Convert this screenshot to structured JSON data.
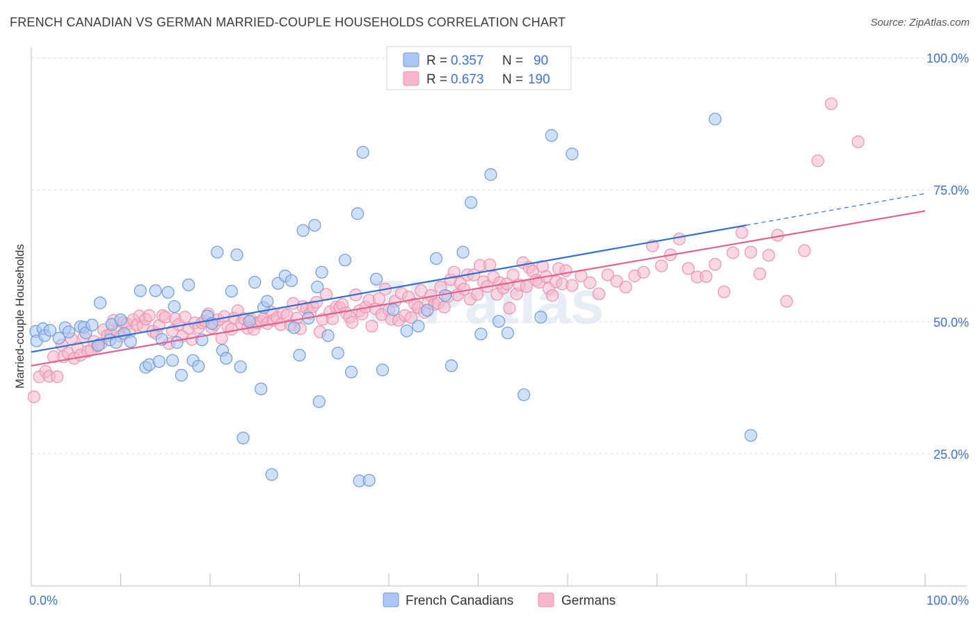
{
  "title": "FRENCH CANADIAN VS GERMAN MARRIED-COUPLE HOUSEHOLDS CORRELATION CHART",
  "source": "Source: ZipAtlas.com",
  "watermark": "ZIPatlas",
  "colors": {
    "blue_fill": "#a9c7f2",
    "blue_stroke": "#6f9bd8",
    "blue_line": "#2e6fd1",
    "pink_fill": "#f6b6cb",
    "pink_stroke": "#e894b0",
    "pink_line": "#e0608e",
    "tick_label": "#3f72c4",
    "grid": "#d9d9d9",
    "axis": "#bdbdbd"
  },
  "legend_top": [
    {
      "r_label": "R =",
      "r_value": "0.357",
      "n_label": "N =",
      "n_value": "90"
    },
    {
      "r_label": "R =",
      "r_value": "0.673",
      "n_label": "N =",
      "n_value": "190"
    }
  ],
  "legend_bottom": [
    "French Canadians",
    "Germans"
  ],
  "chart_data": {
    "type": "scatter",
    "ylabel": "Married-couple Households",
    "xlabel": "",
    "xlim": [
      0,
      100
    ],
    "ylim": [
      0,
      102
    ],
    "x_tick_labels": [
      "0.0%",
      "100.0%"
    ],
    "y_ticks": [
      25,
      50,
      75,
      100
    ],
    "y_tick_labels": [
      "25.0%",
      "50.0%",
      "75.0%",
      "100.0%"
    ],
    "grid": true,
    "legend_placement": "top-center and bottom-center",
    "series": [
      {
        "name": "French Canadians",
        "r": 0.357,
        "n": 90,
        "trend": {
          "x0": 0,
          "y0": 44.3,
          "x1": 80,
          "y1": 68.3,
          "dash_to_x": 100,
          "dash_to_y": 74.3
        },
        "points": [
          [
            0.5,
            48.2
          ],
          [
            0.6,
            46.4
          ],
          [
            1.3,
            48.7
          ],
          [
            1.5,
            47.4
          ],
          [
            2.1,
            48.4
          ],
          [
            3.1,
            46.9
          ],
          [
            3.8,
            48.9
          ],
          [
            4.2,
            48.1
          ],
          [
            5.5,
            49.1
          ],
          [
            5.9,
            49.0
          ],
          [
            6.1,
            47.9
          ],
          [
            6.8,
            49.4
          ],
          [
            7.5,
            45.6
          ],
          [
            7.7,
            53.6
          ],
          [
            8.8,
            46.6
          ],
          [
            9.0,
            49.5
          ],
          [
            9.5,
            46.1
          ],
          [
            10.0,
            50.4
          ],
          [
            10.4,
            47.8
          ],
          [
            11.1,
            46.3
          ],
          [
            12.2,
            55.9
          ],
          [
            12.8,
            41.4
          ],
          [
            13.2,
            41.9
          ],
          [
            13.9,
            55.9
          ],
          [
            14.3,
            42.5
          ],
          [
            14.6,
            46.7
          ],
          [
            15.3,
            55.6
          ],
          [
            15.8,
            42.7
          ],
          [
            16.0,
            52.9
          ],
          [
            16.3,
            46.1
          ],
          [
            16.8,
            39.9
          ],
          [
            17.6,
            57.0
          ],
          [
            18.1,
            42.7
          ],
          [
            18.7,
            41.6
          ],
          [
            19.1,
            46.6
          ],
          [
            19.7,
            51.1
          ],
          [
            20.2,
            49.7
          ],
          [
            20.8,
            63.2
          ],
          [
            21.4,
            44.6
          ],
          [
            21.8,
            43.1
          ],
          [
            22.4,
            55.8
          ],
          [
            23.0,
            62.7
          ],
          [
            23.4,
            41.5
          ],
          [
            23.7,
            28.0
          ],
          [
            24.4,
            50.1
          ],
          [
            25.0,
            57.5
          ],
          [
            25.7,
            37.3
          ],
          [
            26.0,
            52.7
          ],
          [
            26.4,
            53.9
          ],
          [
            26.9,
            21.1
          ],
          [
            27.6,
            57.3
          ],
          [
            28.4,
            58.7
          ],
          [
            29.1,
            57.8
          ],
          [
            29.4,
            48.9
          ],
          [
            30.0,
            43.7
          ],
          [
            30.4,
            67.3
          ],
          [
            31.0,
            50.7
          ],
          [
            31.7,
            68.3
          ],
          [
            32.0,
            56.6
          ],
          [
            32.5,
            59.4
          ],
          [
            32.2,
            34.9
          ],
          [
            33.2,
            47.4
          ],
          [
            34.3,
            44.1
          ],
          [
            35.1,
            61.7
          ],
          [
            35.8,
            40.5
          ],
          [
            36.5,
            70.5
          ],
          [
            36.7,
            19.9
          ],
          [
            37.1,
            82.1
          ],
          [
            37.8,
            20.0
          ],
          [
            38.6,
            58.1
          ],
          [
            39.3,
            40.9
          ],
          [
            40.5,
            52.3
          ],
          [
            42.0,
            48.3
          ],
          [
            43.3,
            49.2
          ],
          [
            44.3,
            52.2
          ],
          [
            45.3,
            62.0
          ],
          [
            46.3,
            55.0
          ],
          [
            47.0,
            41.7
          ],
          [
            48.3,
            63.2
          ],
          [
            49.2,
            72.6
          ],
          [
            50.3,
            47.7
          ],
          [
            51.4,
            77.9
          ],
          [
            52.3,
            50.1
          ],
          [
            53.3,
            47.9
          ],
          [
            55.1,
            36.2
          ],
          [
            57.0,
            50.9
          ],
          [
            58.2,
            85.3
          ],
          [
            60.5,
            81.8
          ],
          [
            76.5,
            88.4
          ],
          [
            80.5,
            28.5
          ]
        ]
      },
      {
        "name": "Germans",
        "r": 0.673,
        "n": 190,
        "trend": {
          "x0": 0,
          "y0": 41.7,
          "x1": 100,
          "y1": 71.0
        },
        "points": [
          [
            0.3,
            35.8
          ],
          [
            0.9,
            39.6
          ],
          [
            1.6,
            40.6
          ],
          [
            2.0,
            39.7
          ],
          [
            2.5,
            43.4
          ],
          [
            2.9,
            39.6
          ],
          [
            3.4,
            45.6
          ],
          [
            3.6,
            43.4
          ],
          [
            4.1,
            44.1
          ],
          [
            4.5,
            46.8
          ],
          [
            4.8,
            43.1
          ],
          [
            5.2,
            45.1
          ],
          [
            5.5,
            43.7
          ],
          [
            5.9,
            47.2
          ],
          [
            6.3,
            44.4
          ],
          [
            6.7,
            44.7
          ],
          [
            7.0,
            46.3
          ],
          [
            7.4,
            45.4
          ],
          [
            7.8,
            45.9
          ],
          [
            8.1,
            48.5
          ],
          [
            8.5,
            47.4
          ],
          [
            8.9,
            47.7
          ],
          [
            9.2,
            50.3
          ],
          [
            9.6,
            48.1
          ],
          [
            10.0,
            47.3
          ],
          [
            10.3,
            49.9
          ],
          [
            10.7,
            49.6
          ],
          [
            11.0,
            48.1
          ],
          [
            11.4,
            50.4
          ],
          [
            11.8,
            49.4
          ],
          [
            12.1,
            51.1
          ],
          [
            12.5,
            49.2
          ],
          [
            12.8,
            50.5
          ],
          [
            13.2,
            51.2
          ],
          [
            13.6,
            48.2
          ],
          [
            14.0,
            47.8
          ],
          [
            14.3,
            49.3
          ],
          [
            14.7,
            51.2
          ],
          [
            15.0,
            50.9
          ],
          [
            15.4,
            45.9
          ],
          [
            15.8,
            48.3
          ],
          [
            16.1,
            50.6
          ],
          [
            16.5,
            49.5
          ],
          [
            16.9,
            47.3
          ],
          [
            17.2,
            50.9
          ],
          [
            17.6,
            48.8
          ],
          [
            18.0,
            46.7
          ],
          [
            18.3,
            49.8
          ],
          [
            18.7,
            48.9
          ],
          [
            19.1,
            49.8
          ],
          [
            19.4,
            50.2
          ],
          [
            19.8,
            51.5
          ],
          [
            20.2,
            48.9
          ],
          [
            20.5,
            49.5
          ],
          [
            20.9,
            50.4
          ],
          [
            21.3,
            46.9
          ],
          [
            21.6,
            51.0
          ],
          [
            22.0,
            49.1
          ],
          [
            22.4,
            48.6
          ],
          [
            22.7,
            50.7
          ],
          [
            23.1,
            52.1
          ],
          [
            23.5,
            49.7
          ],
          [
            23.8,
            50.6
          ],
          [
            24.2,
            48.8
          ],
          [
            24.6,
            50.4
          ],
          [
            24.9,
            48.6
          ],
          [
            25.3,
            49.8
          ],
          [
            25.7,
            50.1
          ],
          [
            26.0,
            50.7
          ],
          [
            26.4,
            49.7
          ],
          [
            26.8,
            51.9
          ],
          [
            27.1,
            50.3
          ],
          [
            27.5,
            50.8
          ],
          [
            27.9,
            49.5
          ],
          [
            28.2,
            51.7
          ],
          [
            28.6,
            51.3
          ],
          [
            29.0,
            49.4
          ],
          [
            29.3,
            53.5
          ],
          [
            29.7,
            50.7
          ],
          [
            30.1,
            48.7
          ],
          [
            30.4,
            52.9
          ],
          [
            30.8,
            52.6
          ],
          [
            31.2,
            51.6
          ],
          [
            31.5,
            52.9
          ],
          [
            31.9,
            53.7
          ],
          [
            32.3,
            48.1
          ],
          [
            32.6,
            50.5
          ],
          [
            33.0,
            55.2
          ],
          [
            33.4,
            51.9
          ],
          [
            33.7,
            50.6
          ],
          [
            34.1,
            52.8
          ],
          [
            34.5,
            52.7
          ],
          [
            34.8,
            53.3
          ],
          [
            35.2,
            51.7
          ],
          [
            35.6,
            50.9
          ],
          [
            35.9,
            49.9
          ],
          [
            36.3,
            55.1
          ],
          [
            36.7,
            52.1
          ],
          [
            37.0,
            51.5
          ],
          [
            37.4,
            52.8
          ],
          [
            37.8,
            54.1
          ],
          [
            38.1,
            49.2
          ],
          [
            38.5,
            52.5
          ],
          [
            38.9,
            54.4
          ],
          [
            39.2,
            51.4
          ],
          [
            39.6,
            56.2
          ],
          [
            40.0,
            52.3
          ],
          [
            40.3,
            50.5
          ],
          [
            40.7,
            53.9
          ],
          [
            41.1,
            50.3
          ],
          [
            41.4,
            55.4
          ],
          [
            41.8,
            51.2
          ],
          [
            42.2,
            54.7
          ],
          [
            42.5,
            50.8
          ],
          [
            42.9,
            53.4
          ],
          [
            43.3,
            52.7
          ],
          [
            43.6,
            55.9
          ],
          [
            44.0,
            51.8
          ],
          [
            44.4,
            53.6
          ],
          [
            44.7,
            55.0
          ],
          [
            45.1,
            53.3
          ],
          [
            45.5,
            53.5
          ],
          [
            45.8,
            56.6
          ],
          [
            46.2,
            52.8
          ],
          [
            46.6,
            54.8
          ],
          [
            46.9,
            58.0
          ],
          [
            47.3,
            59.4
          ],
          [
            47.7,
            55.1
          ],
          [
            48.0,
            57.3
          ],
          [
            48.4,
            56.2
          ],
          [
            48.8,
            58.9
          ],
          [
            49.1,
            54.3
          ],
          [
            49.5,
            58.9
          ],
          [
            49.9,
            55.2
          ],
          [
            50.2,
            60.7
          ],
          [
            50.6,
            57.6
          ],
          [
            51.0,
            56.7
          ],
          [
            51.3,
            60.8
          ],
          [
            51.7,
            58.5
          ],
          [
            52.1,
            55.2
          ],
          [
            52.4,
            57.4
          ],
          [
            52.8,
            56.4
          ],
          [
            53.2,
            57.2
          ],
          [
            53.5,
            52.6
          ],
          [
            53.9,
            58.9
          ],
          [
            54.3,
            55.3
          ],
          [
            54.6,
            57.0
          ],
          [
            55.0,
            61.2
          ],
          [
            55.4,
            56.7
          ],
          [
            55.7,
            60.3
          ],
          [
            56.1,
            59.6
          ],
          [
            56.5,
            57.9
          ],
          [
            56.8,
            57.5
          ],
          [
            57.2,
            60.5
          ],
          [
            57.6,
            58.6
          ],
          [
            57.9,
            56.3
          ],
          [
            58.3,
            55.0
          ],
          [
            58.7,
            57.6
          ],
          [
            59.0,
            60.1
          ],
          [
            59.4,
            57.2
          ],
          [
            59.8,
            59.7
          ],
          [
            60.5,
            56.9
          ],
          [
            61.5,
            58.7
          ],
          [
            62.5,
            57.4
          ],
          [
            63.5,
            55.3
          ],
          [
            64.5,
            58.9
          ],
          [
            65.5,
            57.7
          ],
          [
            66.5,
            56.6
          ],
          [
            67.5,
            58.7
          ],
          [
            68.5,
            59.4
          ],
          [
            69.5,
            64.4
          ],
          [
            70.5,
            60.6
          ],
          [
            71.5,
            62.7
          ],
          [
            72.5,
            65.7
          ],
          [
            73.5,
            60.1
          ],
          [
            74.5,
            58.5
          ],
          [
            75.5,
            58.6
          ],
          [
            76.5,
            60.9
          ],
          [
            77.5,
            55.7
          ],
          [
            78.5,
            63.1
          ],
          [
            79.5,
            66.9
          ],
          [
            80.5,
            63.2
          ],
          [
            81.5,
            59.1
          ],
          [
            82.5,
            62.6
          ],
          [
            83.5,
            66.4
          ],
          [
            84.5,
            53.9
          ],
          [
            86.5,
            63.5
          ],
          [
            88.0,
            80.5
          ],
          [
            89.5,
            91.3
          ],
          [
            92.5,
            84.1
          ]
        ]
      }
    ]
  }
}
